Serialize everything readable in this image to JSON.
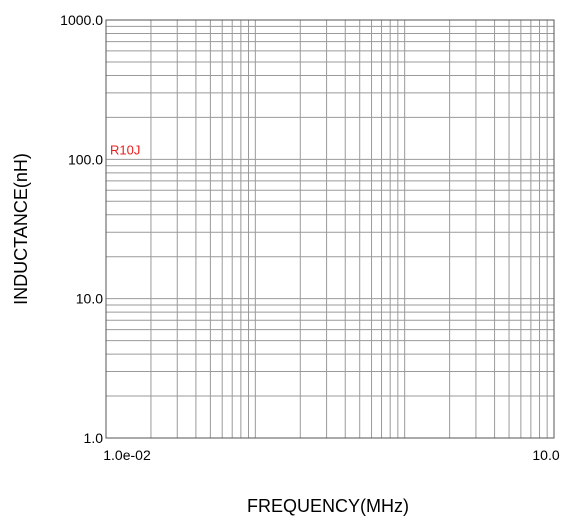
{
  "chart_data": {
    "type": "line",
    "title": "",
    "xlabel": "FREQUENCY(MHz)",
    "ylabel": "INDUCTANCE(nH)",
    "x_scale": "log",
    "y_scale": "log",
    "xlim": [
      0.01,
      10.0
    ],
    "ylim": [
      1.0,
      1000.0
    ],
    "x_tick_labels": [
      "1.0e-02",
      "10.0"
    ],
    "y_tick_labels": [
      "1.0",
      "10.0",
      "100.0",
      "1000.0"
    ],
    "grid": true,
    "series": [
      {
        "name": "R10J",
        "color": "#e8201c",
        "x": [],
        "y": []
      }
    ]
  }
}
